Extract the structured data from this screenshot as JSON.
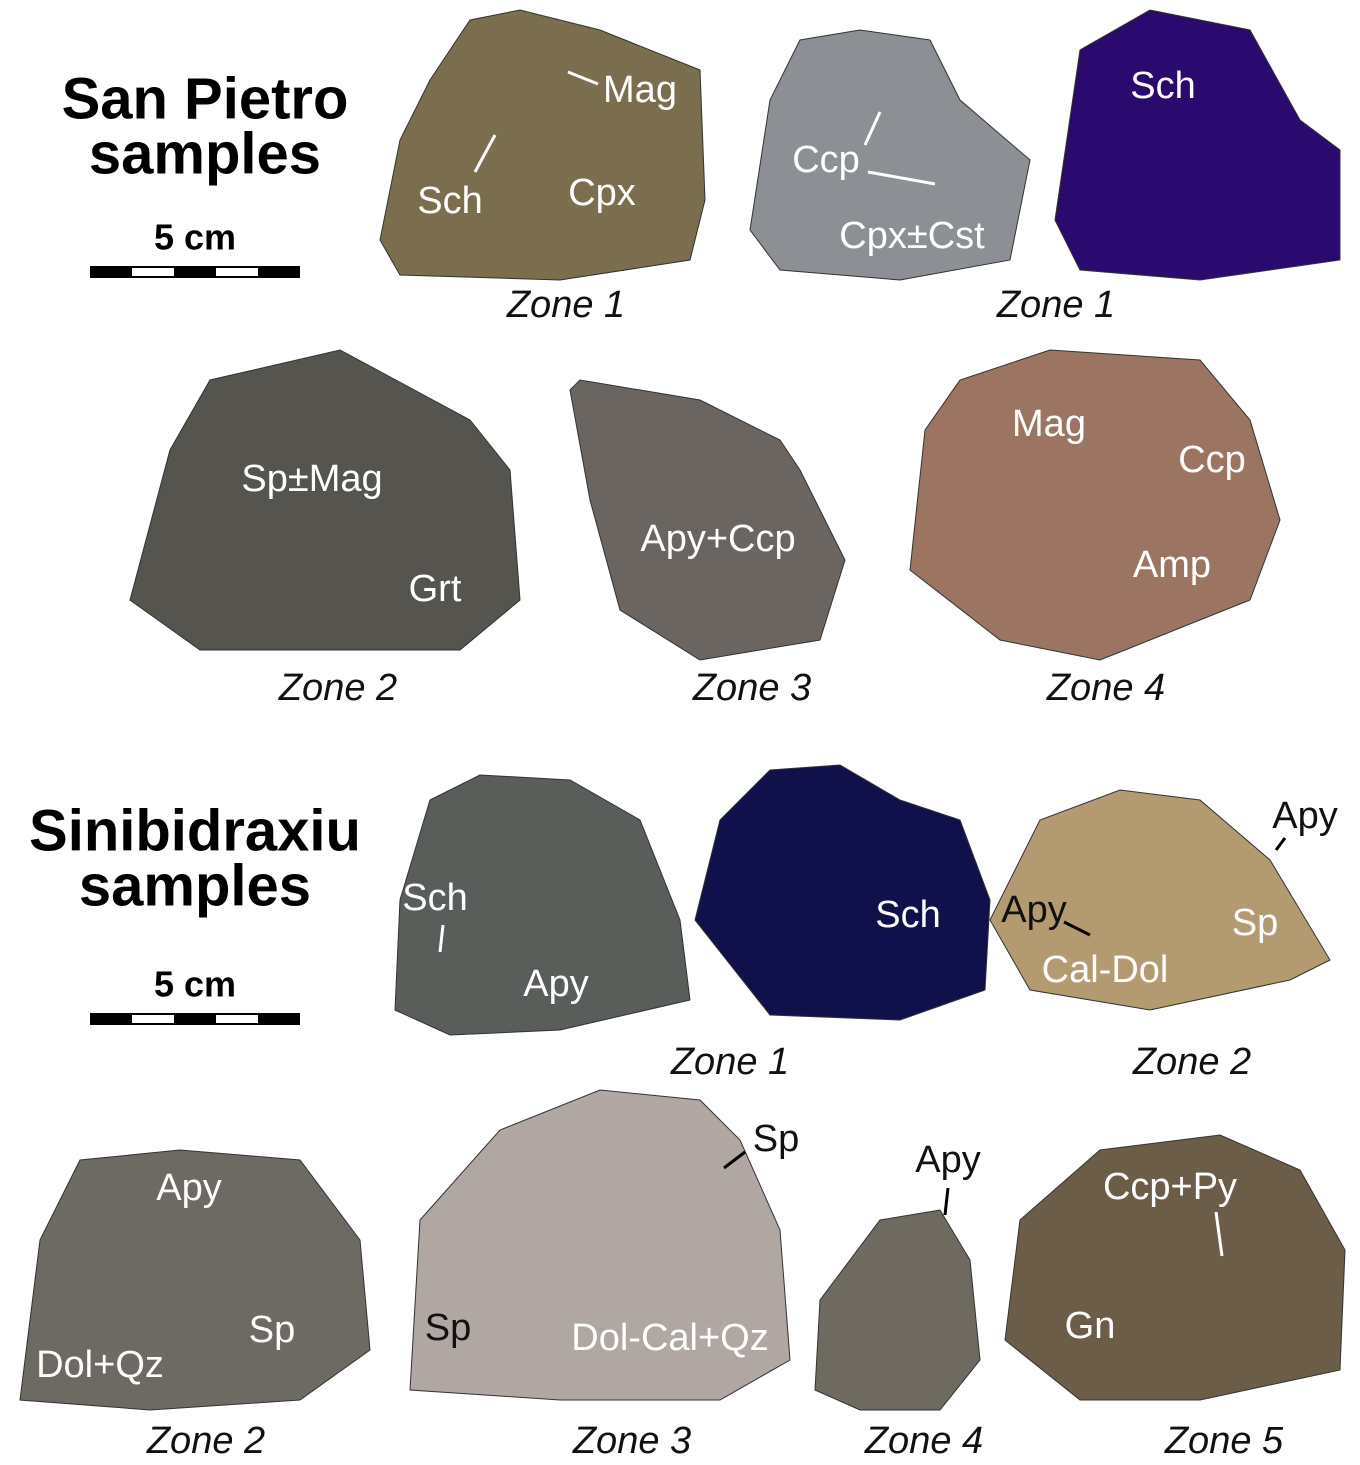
{
  "san_pietro": {
    "title": [
      "San Pietro",
      "samples"
    ],
    "scale": "5 cm",
    "captions": [
      "Zone 1",
      "Zone 1",
      "Zone 2",
      "Zone 3",
      "Zone 4"
    ],
    "labels": [
      "Mag",
      "Sch",
      "Cpx",
      "Ccp",
      "Cpx±Cst",
      "Sch",
      "Sp±Mag",
      "Grt",
      "Apy+Ccp",
      "Mag",
      "Ccp",
      "Amp"
    ]
  },
  "sinibidraxiu": {
    "title": [
      "Sinibidraxiu",
      "samples"
    ],
    "scale": "5 cm",
    "captions": [
      "Zone 1",
      "Zone 2",
      "Zone 2",
      "Zone 3",
      "Zone 4",
      "Zone 5"
    ],
    "labels": [
      "Sch",
      "Apy",
      "Sch",
      "Apy",
      "Apy",
      "Sp",
      "Cal-Dol",
      "Apy",
      "Sp",
      "Dol+Qz",
      "Sp",
      "Sp",
      "Dol-Cal+Qz",
      "Apy",
      "Ccp+Py",
      "Gn"
    ]
  }
}
